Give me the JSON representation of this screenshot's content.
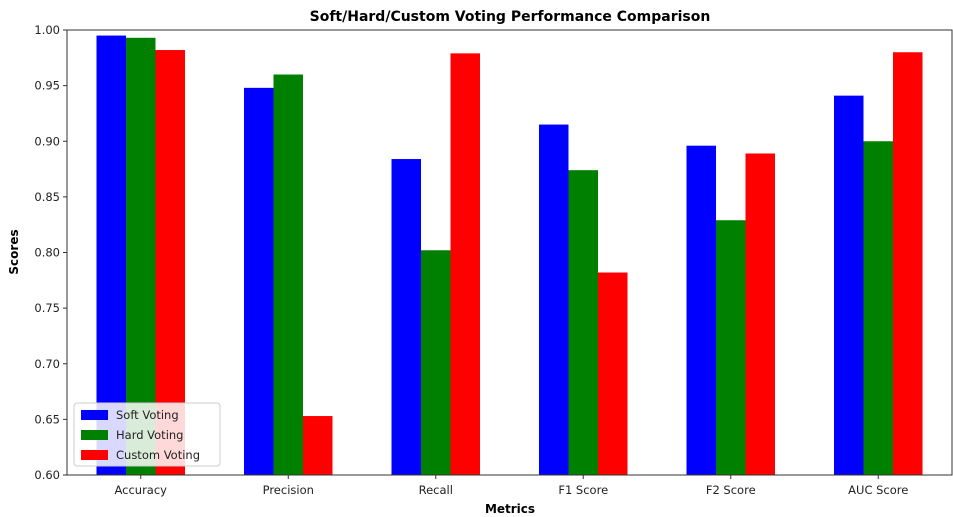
{
  "chart_data": {
    "type": "bar",
    "title": "Soft/Hard/Custom Voting Performance Comparison",
    "xlabel": "Metrics",
    "ylabel": "Scores",
    "ylim": [
      0.6,
      1.0
    ],
    "yticks": [
      "0.60",
      "0.65",
      "0.70",
      "0.75",
      "0.80",
      "0.85",
      "0.90",
      "0.95",
      "1.00"
    ],
    "categories": [
      "Accuracy",
      "Precision",
      "Recall",
      "F1 Score",
      "F2 Score",
      "AUC Score"
    ],
    "series": [
      {
        "name": "Soft Voting",
        "color": "#0000ff",
        "values": [
          0.995,
          0.948,
          0.884,
          0.915,
          0.896,
          0.941
        ]
      },
      {
        "name": "Hard Voting",
        "color": "#008000",
        "values": [
          0.993,
          0.96,
          0.802,
          0.874,
          0.829,
          0.9
        ]
      },
      {
        "name": "Custom Voting",
        "color": "#ff0000",
        "values": [
          0.982,
          0.653,
          0.979,
          0.782,
          0.889,
          0.98
        ]
      }
    ],
    "grid": false,
    "legend": "lower-left"
  }
}
